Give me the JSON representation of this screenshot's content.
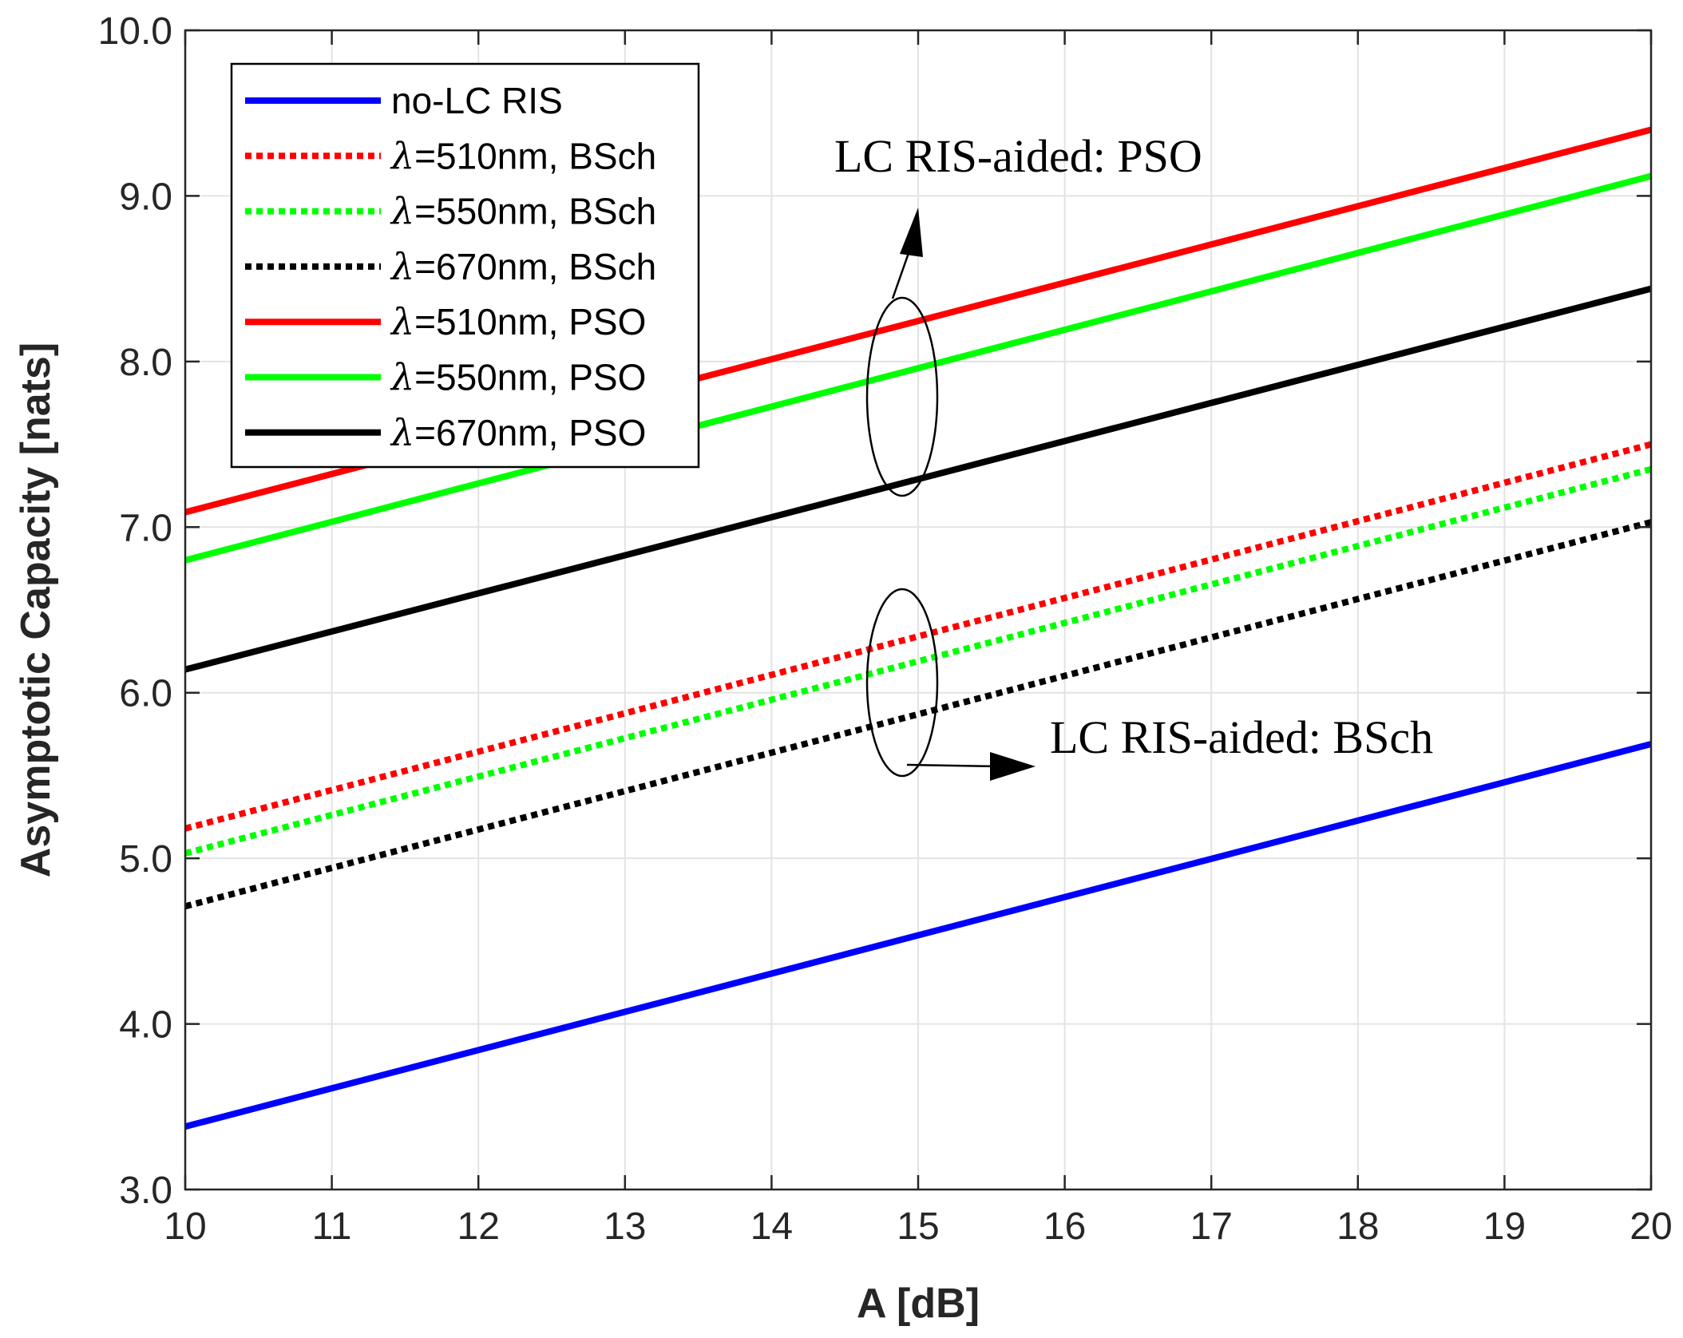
{
  "chart_data": {
    "type": "line",
    "title": "",
    "xlabel": "A [dB]",
    "ylabel": "Asymptotic Capacity [nats]",
    "xlim": [
      10,
      20
    ],
    "ylim": [
      3.0,
      10.0
    ],
    "grid": true,
    "legend_position": "top-left",
    "xticks": [
      10,
      11,
      12,
      13,
      14,
      15,
      16,
      17,
      18,
      19,
      20
    ],
    "xtick_labels": [
      "10",
      "11",
      "12",
      "13",
      "14",
      "15",
      "16",
      "17",
      "18",
      "19",
      "20"
    ],
    "yticks": [
      3.0,
      4.0,
      5.0,
      6.0,
      7.0,
      8.0,
      9.0,
      10.0
    ],
    "ytick_labels": [
      "3.0",
      "4.0",
      "5.0",
      "6.0",
      "7.0",
      "8.0",
      "9.0",
      "10.0"
    ],
    "series": [
      {
        "name": "no-LC RIS",
        "legend_symbol": "",
        "legend_rest": "no-LC RIS",
        "color": "#0000ff",
        "style": "solid",
        "x": [
          10,
          20
        ],
        "values": [
          3.38,
          5.69
        ]
      },
      {
        "name": "λ=510nm, BSch",
        "legend_symbol": "λ",
        "legend_rest": "=510nm, BSch",
        "color": "#ff0000",
        "style": "dotted",
        "x": [
          10,
          20
        ],
        "values": [
          5.18,
          7.5
        ]
      },
      {
        "name": "λ=550nm, BSch",
        "legend_symbol": "λ",
        "legend_rest": "=550nm, BSch",
        "color": "#00ff00",
        "style": "dotted",
        "x": [
          10,
          20
        ],
        "values": [
          5.03,
          7.35
        ]
      },
      {
        "name": "λ=670nm, BSch",
        "legend_symbol": "λ",
        "legend_rest": "=670nm, BSch",
        "color": "#000000",
        "style": "dotted",
        "x": [
          10,
          20
        ],
        "values": [
          4.71,
          7.03
        ]
      },
      {
        "name": "λ=510nm, PSO",
        "legend_symbol": "λ",
        "legend_rest": "=510nm, PSO",
        "color": "#ff0000",
        "style": "solid",
        "x": [
          10,
          20
        ],
        "values": [
          7.09,
          9.4
        ]
      },
      {
        "name": "λ=550nm, PSO",
        "legend_symbol": "λ",
        "legend_rest": "=550nm, PSO",
        "color": "#00ff00",
        "style": "solid",
        "x": [
          10,
          20
        ],
        "values": [
          6.8,
          9.12
        ]
      },
      {
        "name": "λ=670nm, PSO",
        "legend_symbol": "λ",
        "legend_rest": "=670nm, PSO",
        "color": "#000000",
        "style": "solid",
        "x": [
          10,
          20
        ],
        "values": [
          6.14,
          8.44
        ]
      }
    ],
    "annotations": [
      {
        "id": "pso",
        "text": "LC RIS-aided: PSO",
        "target_x": 14.9,
        "target_y": 7.78
      },
      {
        "id": "bsch",
        "text": "LC RIS-aided: BSch",
        "target_x": 14.9,
        "target_y": 6.05
      }
    ]
  }
}
